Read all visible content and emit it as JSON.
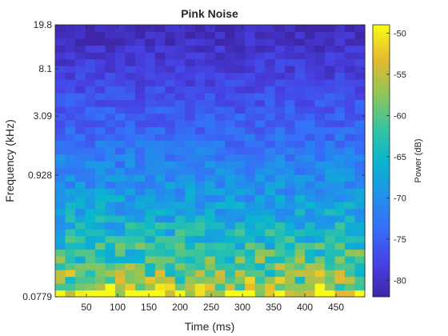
{
  "chart_data": {
    "type": "heatmap",
    "title": "Pink Noise",
    "xlabel": "Time (ms)",
    "ylabel": "Frequency (kHz)",
    "x_range_ms": [
      0,
      496
    ],
    "x_ticks": [
      50,
      100,
      150,
      200,
      250,
      300,
      350,
      400,
      450
    ],
    "y_scale": "log",
    "y_range_khz": [
      0.0779,
      19.8
    ],
    "y_ticks": [
      0.0779,
      0.928,
      3.09,
      8.1,
      19.8
    ],
    "y_tick_labels": [
      "0.0779",
      "0.928",
      "3.09",
      "8.1",
      "19.8"
    ],
    "colorbar": {
      "label": "Power (dB)",
      "range": [
        -82,
        -49
      ],
      "ticks": [
        -80,
        -75,
        -70,
        -65,
        -60,
        -55,
        -50
      ],
      "colormap": "parula"
    },
    "grid": {
      "time_bins": 31,
      "freq_bins": 40,
      "power_db_at_low_freq": -52,
      "power_db_at_high_freq": -81,
      "pattern": "pink noise: power falls off as frequency rises; random cell-to-cell variation"
    },
    "grid_on": false
  }
}
